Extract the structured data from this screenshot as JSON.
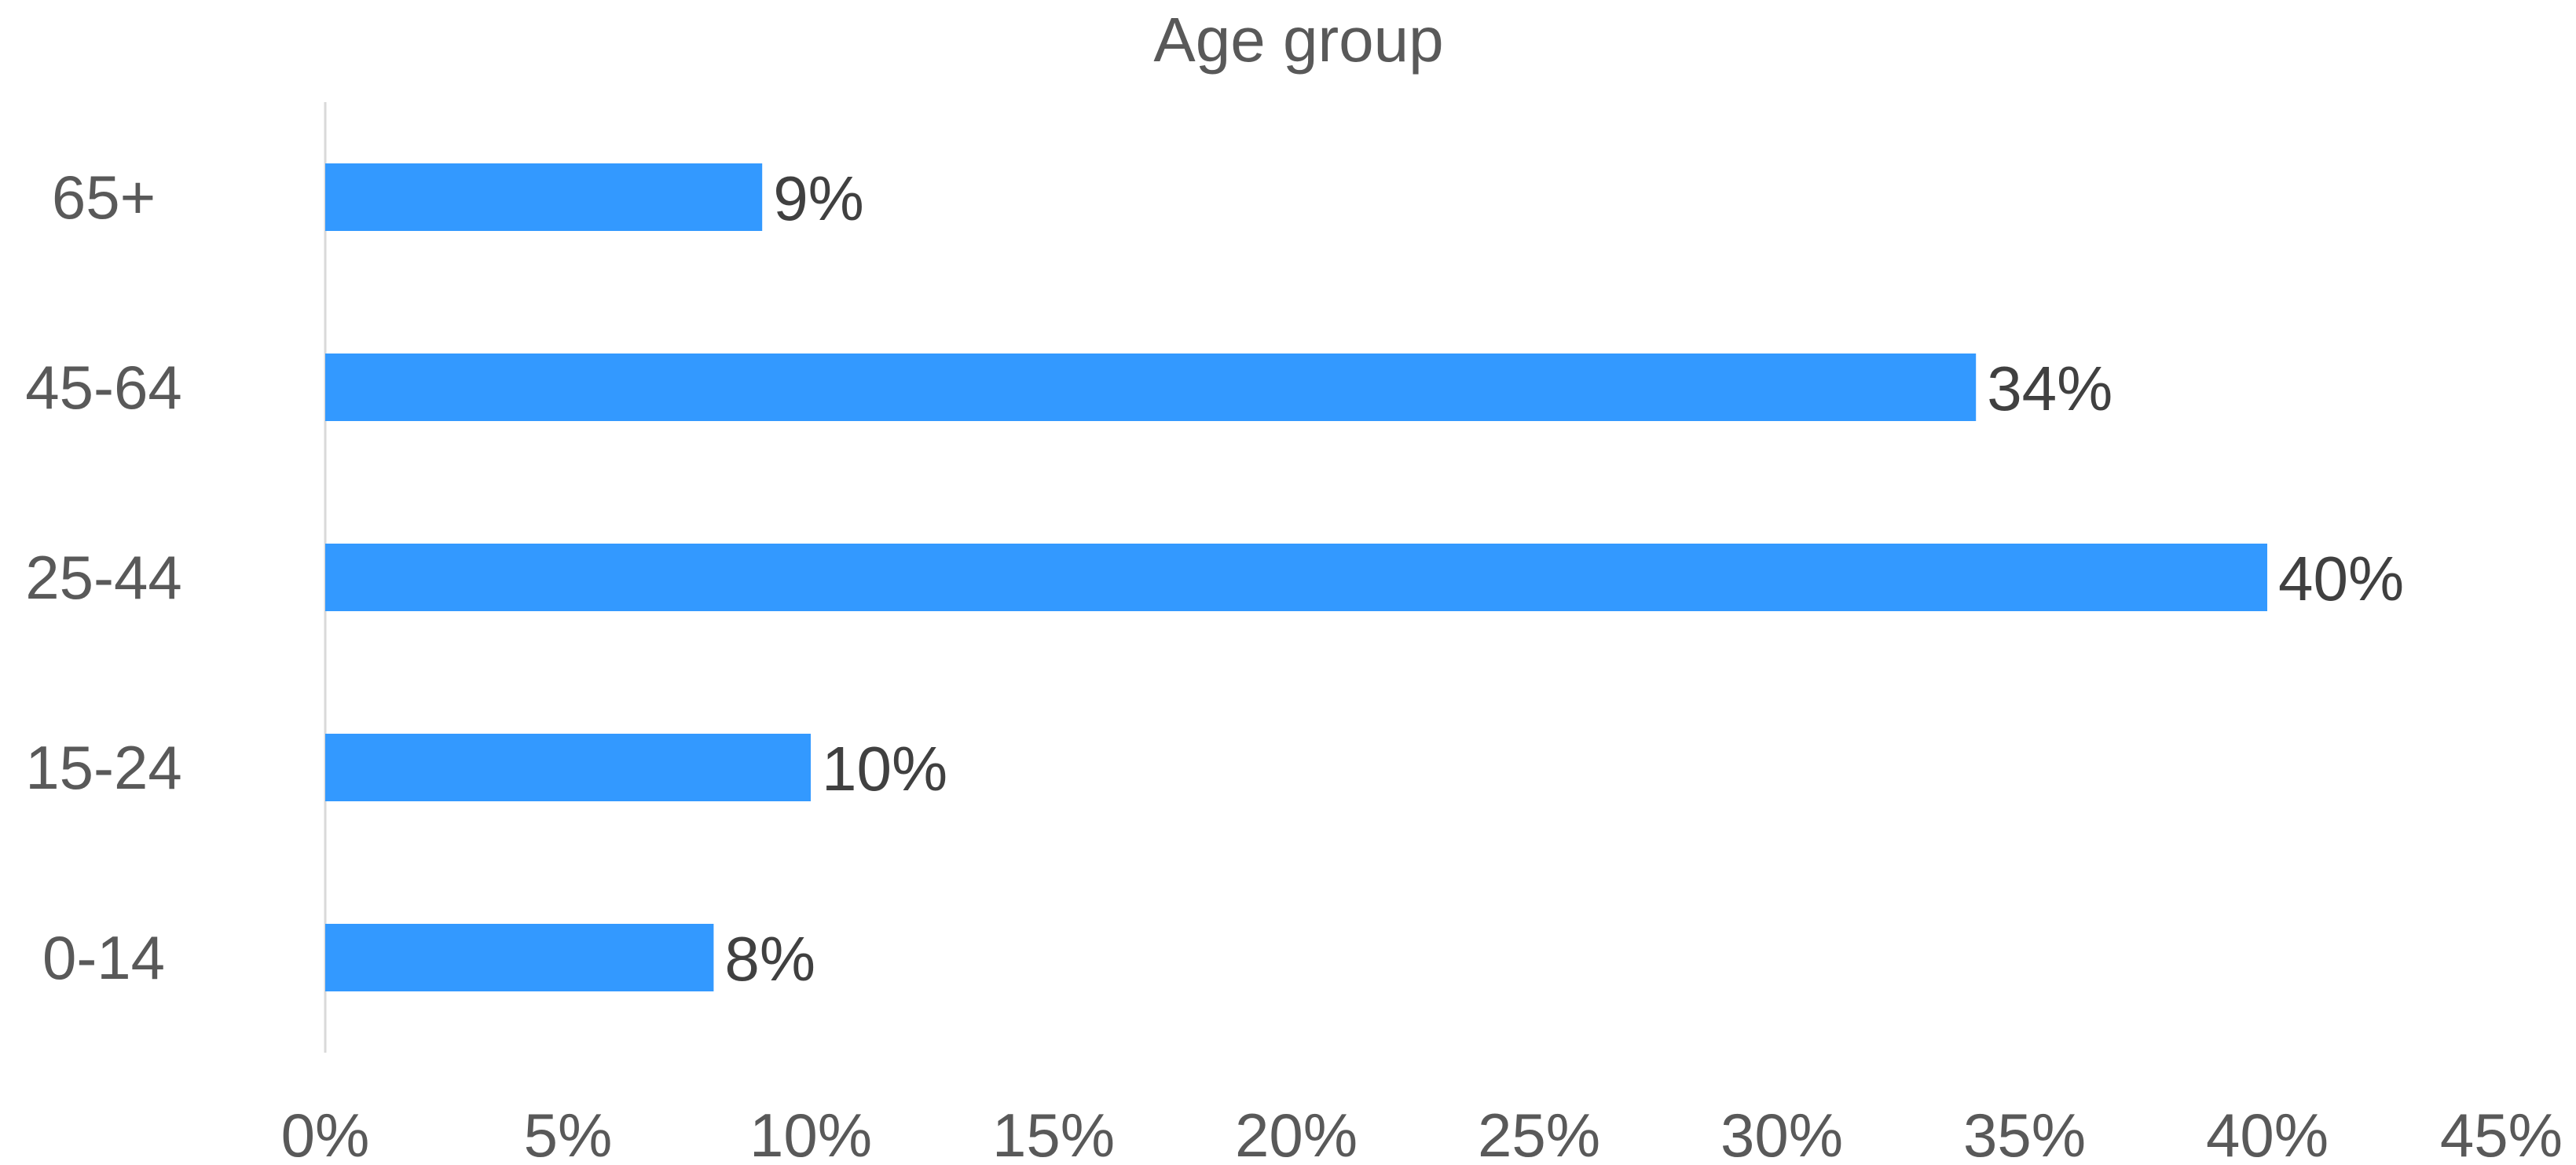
{
  "chart_data": {
    "type": "bar",
    "orientation": "horizontal",
    "title": "Age group",
    "categories": [
      "0-14",
      "15-24",
      "25-44",
      "45-64",
      "65+"
    ],
    "values": [
      0.08,
      0.1,
      0.4,
      0.34,
      0.09
    ],
    "data_labels": [
      "8%",
      "10%",
      "40%",
      "34%",
      "9%"
    ],
    "xlim": [
      0,
      0.45
    ],
    "x_ticks": [
      0,
      0.05,
      0.1,
      0.15,
      0.2,
      0.25,
      0.3,
      0.35,
      0.4,
      0.45
    ],
    "x_tick_labels": [
      "0%",
      "5%",
      "10%",
      "15%",
      "20%",
      "25%",
      "30%",
      "35%",
      "40%",
      "45%"
    ],
    "xlabel": "",
    "ylabel": "",
    "grid": false,
    "legend": "none",
    "colors": {
      "bar": "#3399FF",
      "axis_line": "#D9D9D9",
      "label_text": "#595959",
      "data_label_text": "#404040"
    }
  }
}
